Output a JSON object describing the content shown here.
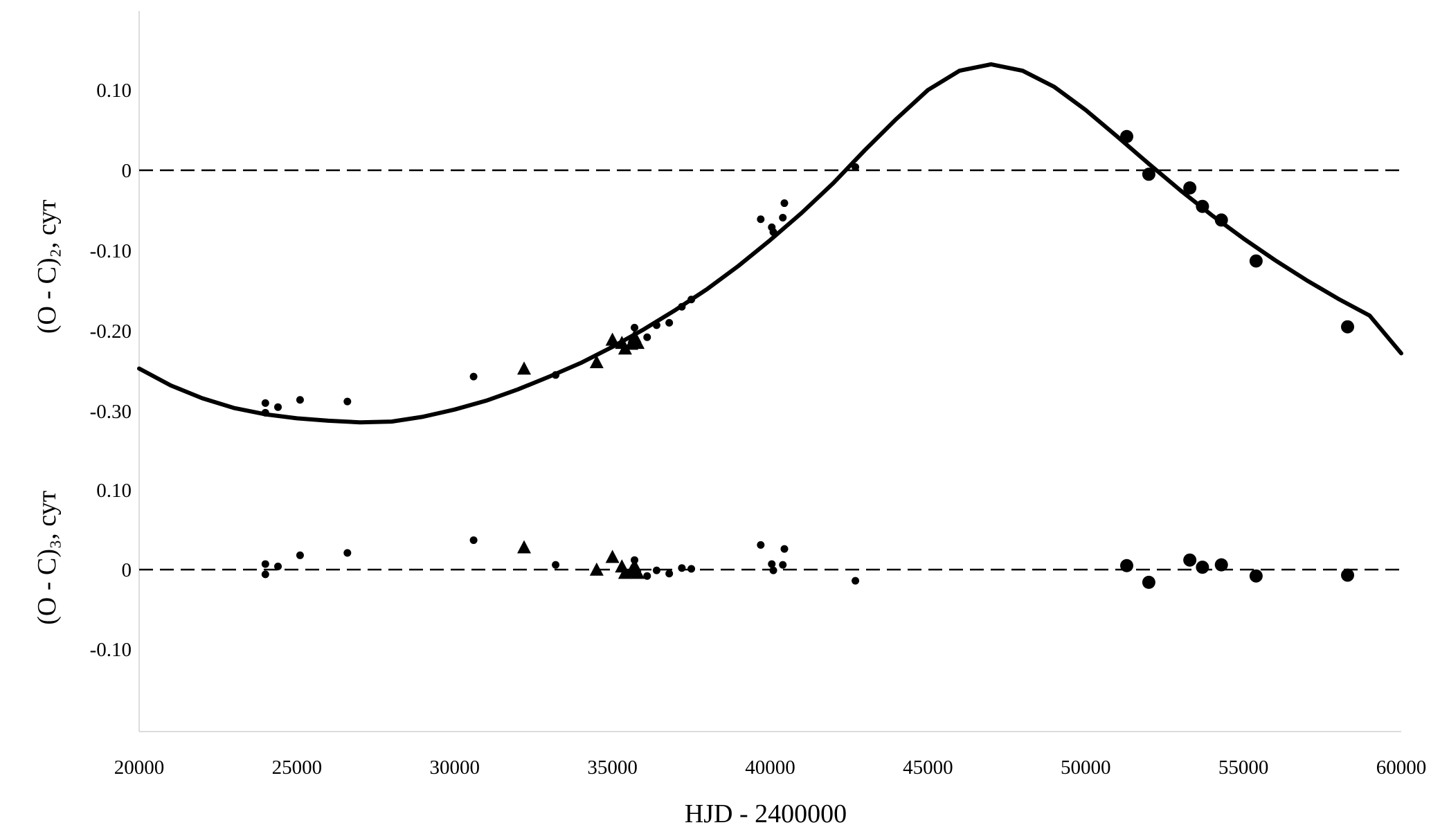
{
  "chart_data": {
    "type": "scatter",
    "xlabel": "HJD - 2400000",
    "xlim": [
      20000,
      60000
    ],
    "x_ticks": [
      20000,
      25000,
      30000,
      35000,
      40000,
      45000,
      50000,
      55000,
      60000
    ],
    "grid": false,
    "legend": "none",
    "panels": [
      {
        "id": "upper",
        "ylabel": "(O - C)₂, сут",
        "ylim": [
          -0.35,
          0.2
        ],
        "y_ticks": [
          {
            "value": 0.1,
            "label": "0.10"
          },
          {
            "value": 0.0,
            "label": "0"
          },
          {
            "value": -0.1,
            "label": "-0.10"
          },
          {
            "value": -0.2,
            "label": "-0.20"
          },
          {
            "value": -0.3,
            "label": "-0.30"
          }
        ],
        "zero_line": "dashed",
        "fit_curve": {
          "type": "line",
          "color": "#000000",
          "points": [
            [
              20000,
              -0.247
            ],
            [
              21000,
              -0.268
            ],
            [
              22000,
              -0.284
            ],
            [
              23000,
              -0.296
            ],
            [
              24000,
              -0.304
            ],
            [
              25000,
              -0.309
            ],
            [
              26000,
              -0.312
            ],
            [
              27000,
              -0.314
            ],
            [
              28000,
              -0.313
            ],
            [
              29000,
              -0.307
            ],
            [
              30000,
              -0.298
            ],
            [
              31000,
              -0.287
            ],
            [
              32000,
              -0.273
            ],
            [
              33000,
              -0.257
            ],
            [
              34000,
              -0.24
            ],
            [
              35000,
              -0.22
            ],
            [
              36000,
              -0.198
            ],
            [
              37000,
              -0.174
            ],
            [
              38000,
              -0.148
            ],
            [
              39000,
              -0.119
            ],
            [
              40000,
              -0.087
            ],
            [
              41000,
              -0.053
            ],
            [
              42000,
              -0.016
            ],
            [
              43000,
              0.025
            ],
            [
              44000,
              0.064
            ],
            [
              45000,
              0.1
            ],
            [
              46000,
              0.124
            ],
            [
              47000,
              0.132
            ],
            [
              48000,
              0.124
            ],
            [
              49000,
              0.104
            ],
            [
              50000,
              0.075
            ],
            [
              51000,
              0.042
            ],
            [
              52000,
              0.008
            ],
            [
              53000,
              -0.025
            ],
            [
              54000,
              -0.056
            ],
            [
              55000,
              -0.085
            ],
            [
              56000,
              -0.112
            ],
            [
              57000,
              -0.137
            ],
            [
              58000,
              -0.16
            ],
            [
              59000,
              -0.181
            ],
            [
              60000,
              -0.228
            ]
          ]
        },
        "series": [
          {
            "marker": "small-circle",
            "points": [
              [
                24000,
                -0.29
              ],
              [
                24000,
                -0.302
              ],
              [
                24400,
                -0.295
              ],
              [
                25100,
                -0.286
              ],
              [
                26600,
                -0.288
              ],
              [
                30600,
                -0.257
              ],
              [
                33200,
                -0.255
              ],
              [
                35700,
                -0.196
              ],
              [
                36100,
                -0.208
              ],
              [
                36400,
                -0.193
              ],
              [
                36800,
                -0.19
              ],
              [
                37200,
                -0.17
              ],
              [
                37500,
                -0.161
              ],
              [
                39700,
                -0.061
              ],
              [
                40050,
                -0.071
              ],
              [
                40100,
                -0.077
              ],
              [
                40400,
                -0.059
              ],
              [
                40450,
                -0.041
              ],
              [
                42700,
                0.004
              ]
            ]
          },
          {
            "marker": "triangle",
            "points": [
              [
                32200,
                -0.248
              ],
              [
                34500,
                -0.24
              ],
              [
                35000,
                -0.212
              ],
              [
                35300,
                -0.216
              ],
              [
                35400,
                -0.223
              ],
              [
                35600,
                -0.217
              ],
              [
                35700,
                -0.208
              ],
              [
                35800,
                -0.216
              ]
            ]
          },
          {
            "marker": "large-circle",
            "points": [
              [
                51300,
                0.042
              ],
              [
                52000,
                -0.005
              ],
              [
                53300,
                -0.022
              ],
              [
                53700,
                -0.045
              ],
              [
                54300,
                -0.062
              ],
              [
                55400,
                -0.113
              ],
              [
                58300,
                -0.195
              ]
            ]
          }
        ]
      },
      {
        "id": "lower",
        "ylabel": "(O - C)₃, сут",
        "ylim": [
          -0.2,
          0.15
        ],
        "y_ticks": [
          {
            "value": 0.1,
            "label": "0.10"
          },
          {
            "value": 0.0,
            "label": "0"
          },
          {
            "value": -0.1,
            "label": "-0.10"
          }
        ],
        "zero_line": "dashed",
        "series": [
          {
            "marker": "small-circle",
            "points": [
              [
                24000,
                0.007
              ],
              [
                24000,
                -0.006
              ],
              [
                24400,
                0.004
              ],
              [
                25100,
                0.018
              ],
              [
                26600,
                0.021
              ],
              [
                30600,
                0.037
              ],
              [
                33200,
                0.006
              ],
              [
                35700,
                0.012
              ],
              [
                36100,
                -0.008
              ],
              [
                36400,
                -0.001
              ],
              [
                36800,
                -0.005
              ],
              [
                37200,
                0.002
              ],
              [
                37500,
                0.001
              ],
              [
                39700,
                0.031
              ],
              [
                40050,
                0.007
              ],
              [
                40100,
                -0.001
              ],
              [
                40400,
                0.006
              ],
              [
                40450,
                0.026
              ],
              [
                42700,
                -0.014
              ]
            ]
          },
          {
            "marker": "triangle",
            "points": [
              [
                32200,
                0.027
              ],
              [
                34500,
                -0.001
              ],
              [
                35000,
                0.015
              ],
              [
                35300,
                0.003
              ],
              [
                35400,
                -0.005
              ],
              [
                35600,
                -0.003
              ],
              [
                35700,
                0.004
              ],
              [
                35800,
                -0.005
              ]
            ]
          },
          {
            "marker": "large-circle",
            "points": [
              [
                51300,
                0.005
              ],
              [
                52000,
                -0.016
              ],
              [
                53300,
                0.012
              ],
              [
                53700,
                0.003
              ],
              [
                54300,
                0.006
              ],
              [
                55400,
                -0.008
              ],
              [
                58300,
                -0.007
              ]
            ]
          }
        ]
      }
    ]
  }
}
